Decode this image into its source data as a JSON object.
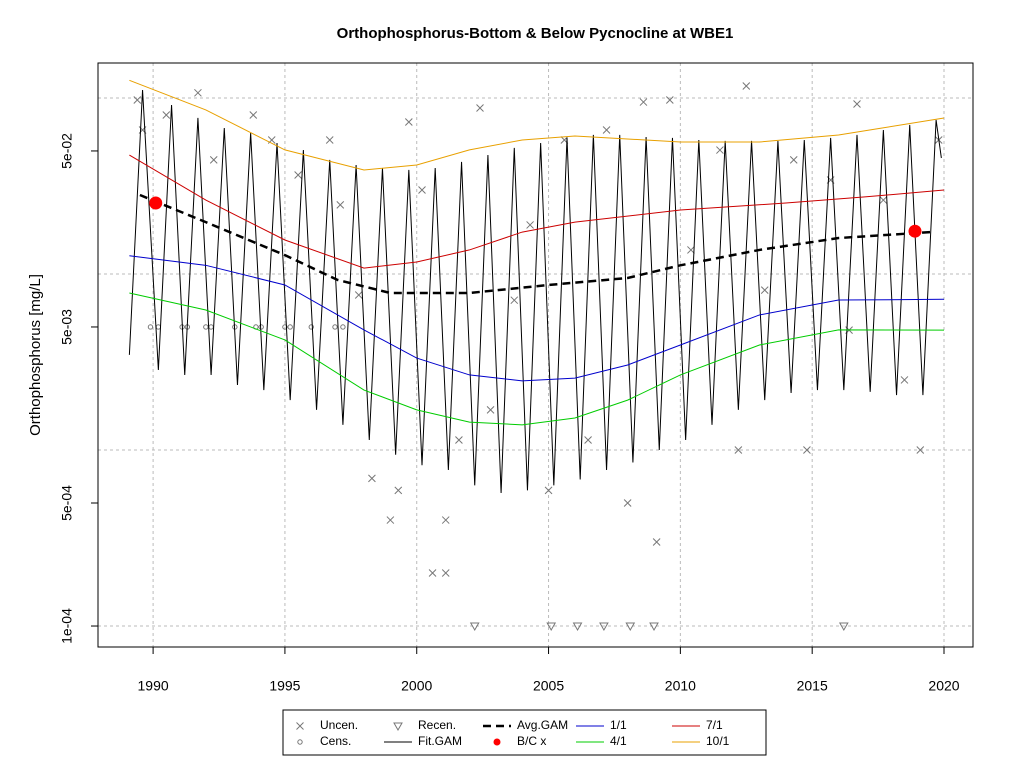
{
  "chart_data": {
    "type": "line",
    "title": "Orthophosphorus-Bottom & Below Pycnocline at WBE1",
    "y_label": "Orthophosphorus [mg/L]",
    "log_y": true,
    "xlim": [
      1987.91,
      2021.1
    ],
    "ylim": [
      7.6e-05,
      0.158
    ],
    "xticks": [
      1990,
      1995,
      2000,
      2005,
      2010,
      2015,
      2020
    ],
    "yticks": [
      {
        "value": 0.0001,
        "label": "1e-04"
      },
      {
        "value": 0.0005,
        "label": "5e-04"
      },
      {
        "value": 0.005,
        "label": "5e-03"
      },
      {
        "value": 0.05,
        "label": "5e-02"
      }
    ],
    "ygrid": [
      0.0001,
      0.001,
      0.01,
      0.1
    ],
    "grid": true,
    "legend": "bottom",
    "series": [
      {
        "name": "Uncen.",
        "color": "#777777",
        "marker": "x",
        "x": [
          1989.4,
          1989.6,
          1990.5,
          1991.7,
          1992.3,
          1993.8,
          1994.5,
          1995.5,
          1996.7,
          1997.1,
          1997.8,
          1998.3,
          1999.0,
          1999.3,
          1999.7,
          2000.2,
          2000.6,
          2001.1,
          2001.1,
          2001.6,
          2002.4,
          2002.8,
          2003.7,
          2004.3,
          2005.0,
          2005.6,
          2006.5,
          2007.2,
          2008.0,
          2008.6,
          2009.1,
          2009.6,
          2010.4,
          2011.5,
          2012.2,
          2012.5,
          2013.2,
          2014.3,
          2014.8,
          2015.7,
          2016.4,
          2016.7,
          2017.7,
          2018.5,
          2019.1,
          2019.8
        ],
        "values": [
          0.0974,
          0.0658,
          0.08,
          0.107,
          0.0445,
          0.08,
          0.0577,
          0.0365,
          0.0577,
          0.0247,
          0.0076,
          0.00069,
          0.0004,
          0.00059,
          0.073,
          0.03,
          0.0002,
          0.0004,
          0.0002,
          0.00114,
          0.0877,
          0.00169,
          0.0071,
          0.019,
          0.00059,
          0.0577,
          0.00114,
          0.0658,
          0.0005,
          0.0948,
          0.0003,
          0.0974,
          0.0137,
          0.0506,
          0.001,
          0.117,
          0.0081,
          0.0445,
          0.001,
          0.0342,
          0.0048,
          0.0924,
          0.0263,
          0.0025,
          0.001,
          0.0577
        ]
      },
      {
        "name": "Cens.",
        "color": "#777777",
        "marker": "circle",
        "x": [
          1989.9,
          1990.2,
          1991.1,
          1991.3,
          1992.0,
          1992.2,
          1993.1,
          1993.9,
          1994.1,
          1995.0,
          1995.2,
          1996.0,
          1996.9,
          1997.2
        ],
        "values": [
          0.005,
          0.005,
          0.005,
          0.005,
          0.005,
          0.005,
          0.005,
          0.005,
          0.005,
          0.005,
          0.005,
          0.005,
          0.005,
          0.005
        ]
      },
      {
        "name": "Recen.",
        "color": "#777777",
        "marker": "triangle",
        "x": [
          2002.2,
          2005.1,
          2006.1,
          2007.1,
          2008.1,
          2009.0,
          2016.2
        ],
        "values": [
          0.0001,
          0.0001,
          0.0001,
          0.0001,
          0.0001,
          0.0001,
          0.0001
        ]
      },
      {
        "name": "Fit.GAM",
        "color": "#000000",
        "line": true,
        "width": 1,
        "x": [
          1989.1,
          1989.6,
          1990.2,
          1990.7,
          1991.2,
          1991.7,
          1992.2,
          1992.7,
          1993.2,
          1993.7,
          1994.2,
          1994.7,
          1995.2,
          1995.7,
          1996.2,
          1996.7,
          1997.2,
          1997.7,
          1998.2,
          1998.7,
          1999.2,
          1999.7,
          2000.2,
          2000.7,
          2001.2,
          2001.7,
          2002.2,
          2002.7,
          2003.2,
          2003.7,
          2004.2,
          2004.7,
          2005.2,
          2005.7,
          2006.2,
          2006.7,
          2007.2,
          2007.7,
          2008.2,
          2008.7,
          2009.2,
          2009.7,
          2010.2,
          2010.7,
          2011.2,
          2011.7,
          2012.2,
          2012.7,
          2013.2,
          2013.7,
          2014.2,
          2014.7,
          2015.2,
          2015.7,
          2016.2,
          2016.7,
          2017.2,
          2017.7,
          2018.2,
          2018.7,
          2019.2,
          2019.7,
          2019.9
        ],
        "values": [
          0.00347,
          0.111,
          0.00285,
          0.0912,
          0.00267,
          0.077,
          0.00267,
          0.0675,
          0.00234,
          0.0633,
          0.00219,
          0.0555,
          0.00192,
          0.0506,
          0.00169,
          0.0445,
          0.00139,
          0.0416,
          0.00114,
          0.04,
          0.00094,
          0.039,
          0.00082,
          0.04,
          0.00077,
          0.0433,
          0.00063,
          0.0474,
          0.00057,
          0.052,
          0.00059,
          0.0555,
          0.00063,
          0.0593,
          0.00068,
          0.0617,
          0.00077,
          0.0617,
          0.00085,
          0.06,
          0.001,
          0.0593,
          0.00114,
          0.0577,
          0.00139,
          0.057,
          0.00169,
          0.057,
          0.00192,
          0.057,
          0.00211,
          0.0577,
          0.00219,
          0.0593,
          0.00219,
          0.0617,
          0.00214,
          0.0658,
          0.00205,
          0.0703,
          0.00205,
          0.075,
          0.0456
        ]
      },
      {
        "name": "Avg.GAM",
        "color": "#000000",
        "line": true,
        "width": 2.5,
        "dash": true,
        "x": [
          1989.5,
          1992,
          1995,
          1997,
          1999,
          2002,
          2005,
          2008,
          2010,
          2013,
          2016,
          2019.5
        ],
        "values": [
          0.0281,
          0.0197,
          0.0128,
          0.00925,
          0.0078,
          0.0078,
          0.00866,
          0.00949,
          0.0112,
          0.0137,
          0.016,
          0.0173
        ]
      },
      {
        "name": "B/C x",
        "color": "#ff0000",
        "marker": "dot",
        "x": [
          1990.1,
          2018.9
        ],
        "values": [
          0.0253,
          0.0175
        ]
      },
      {
        "name": "1/1",
        "color": "#0000cc",
        "line": true,
        "width": 1,
        "x": [
          1989.1,
          1992,
          1995,
          1998,
          2000,
          2002,
          2004,
          2006,
          2008,
          2010,
          2013,
          2016,
          2020
        ],
        "values": [
          0.0127,
          0.0112,
          0.00866,
          0.00481,
          0.00333,
          0.00267,
          0.00247,
          0.00256,
          0.00304,
          0.00395,
          0.00585,
          0.00711,
          0.00718
        ]
      },
      {
        "name": "4/1",
        "color": "#00cc00",
        "line": true,
        "width": 1,
        "x": [
          1989.1,
          1992,
          1995,
          1998,
          2000,
          2002,
          2004,
          2006,
          2008,
          2010,
          2013,
          2016,
          2020
        ],
        "values": [
          0.0078,
          0.00624,
          0.00422,
          0.00219,
          0.00169,
          0.00144,
          0.00139,
          0.00152,
          0.00192,
          0.00267,
          0.00395,
          0.00481,
          0.0048
        ]
      },
      {
        "name": "7/1",
        "color": "#cc0000",
        "line": true,
        "width": 1,
        "x": [
          1989.1,
          1992,
          1995,
          1998,
          2000,
          2002,
          2004,
          2006,
          2010,
          2014,
          2017,
          2020
        ],
        "values": [
          0.0474,
          0.0263,
          0.0156,
          0.0108,
          0.0117,
          0.0137,
          0.0173,
          0.0197,
          0.0231,
          0.0253,
          0.0274,
          0.03
        ]
      },
      {
        "name": "10/1",
        "color": "#e8a000",
        "line": true,
        "width": 1,
        "x": [
          1989.1,
          1992,
          1995,
          1998,
          2000,
          2002,
          2004,
          2006,
          2010,
          2013,
          2016,
          2020
        ],
        "values": [
          0.126,
          0.0855,
          0.0507,
          0.039,
          0.0416,
          0.0507,
          0.0577,
          0.0608,
          0.0562,
          0.0562,
          0.0616,
          0.0769
        ]
      }
    ]
  }
}
